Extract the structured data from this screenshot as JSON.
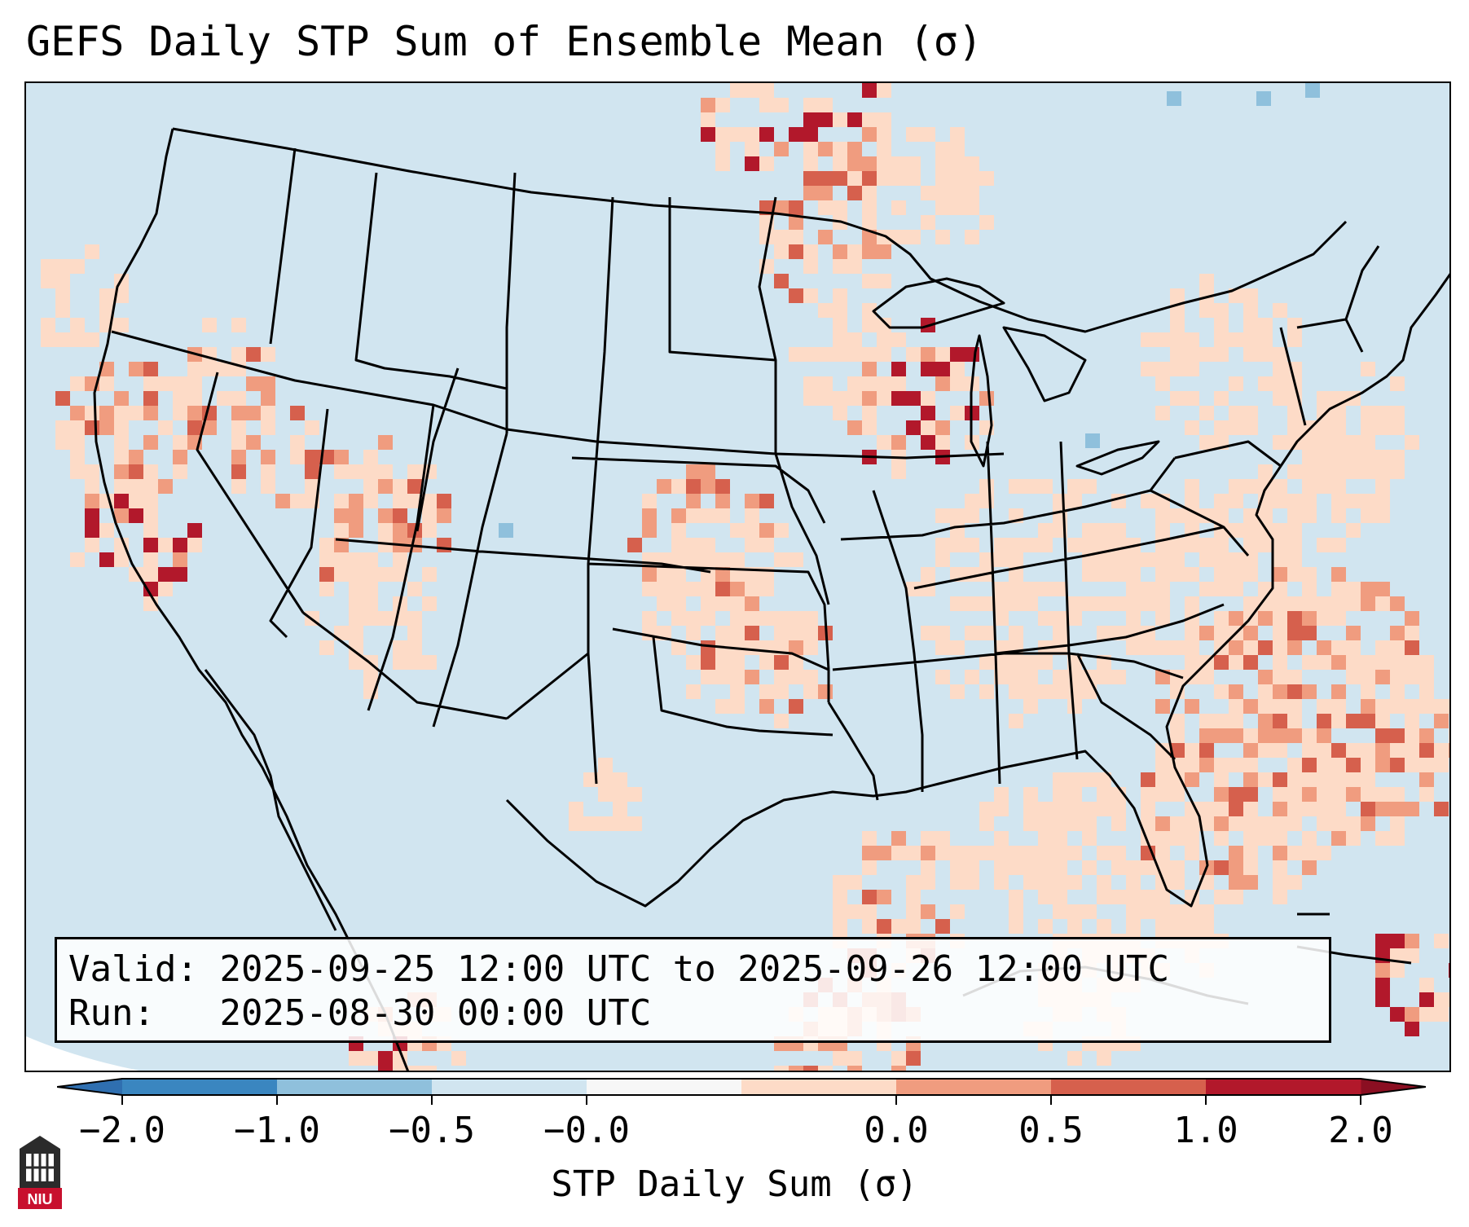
{
  "title": "GEFS Daily STP Sum of Ensemble Mean (σ)",
  "info": {
    "valid_label": "Valid:",
    "valid_value": "2025-09-25 12:00 UTC to 2025-09-26 12:00 UTC",
    "run_label": "Run:",
    "run_value": "2025-08-30 00:00 UTC"
  },
  "colorbar": {
    "label": "STP Daily Sum (σ)",
    "ticks": [
      "−2.0",
      "−1.0",
      "−0.5",
      "−0.0",
      "0.0",
      "0.5",
      "1.0",
      "2.0"
    ],
    "colors": [
      "#3a86c0",
      "#8fc0dc",
      "#d1e5f0",
      "#f7f7f7",
      "#fddbc7",
      "#f09c7f",
      "#d6604d",
      "#b2182b"
    ],
    "extend": "both"
  },
  "map": {
    "ocean_background": "#d1e5f0",
    "outline_color": "#000000",
    "region": "Contiguous United States, southern Canada, northern Mexico, Gulf of Mexico, western Atlantic"
  },
  "logo": {
    "text": "NIU"
  }
}
